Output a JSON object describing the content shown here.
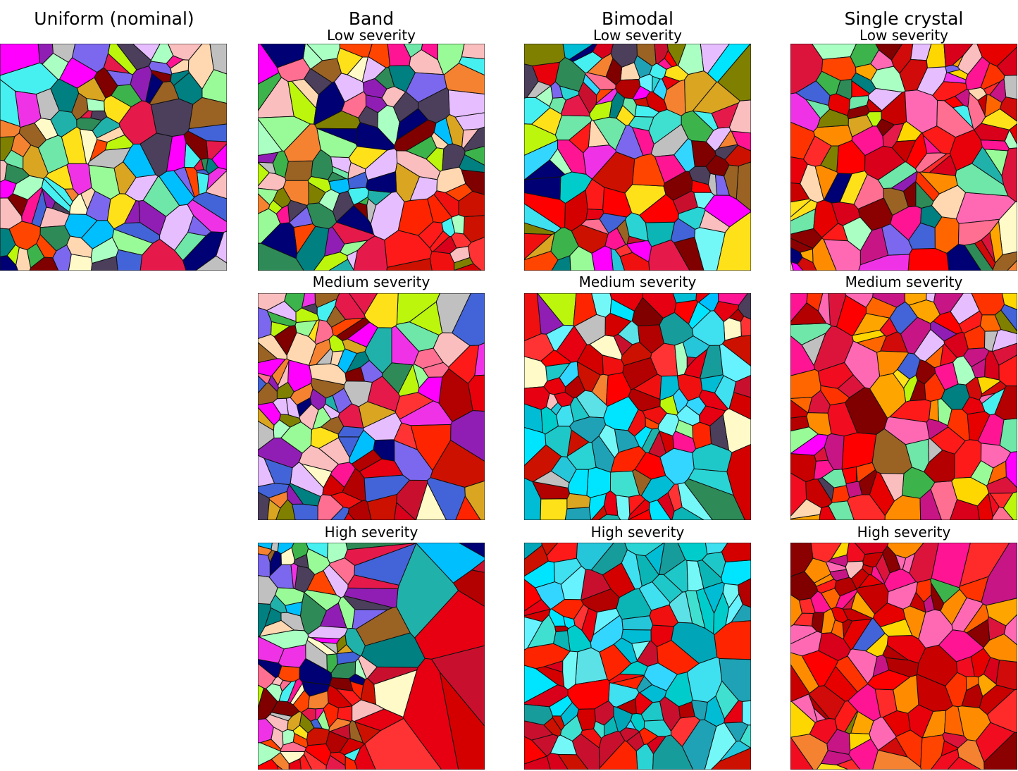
{
  "columns": [
    {
      "title": "Uniform (nominal)",
      "rows": [
        ""
      ]
    },
    {
      "title": "Band",
      "rows": [
        "Low severity",
        "Medium severity",
        "High severity"
      ]
    },
    {
      "title": "Bimodal",
      "rows": [
        "Low severity",
        "Medium severity",
        "High severity"
      ]
    },
    {
      "title": "Single crystal",
      "rows": [
        "Low severity",
        "Medium severity",
        "High severity"
      ]
    }
  ],
  "palettes": {
    "multicolor": [
      "#e6194b",
      "#3cb44b",
      "#ffe119",
      "#4363d8",
      "#f58231",
      "#911eb4",
      "#46f0f0",
      "#f032e6",
      "#bcf60c",
      "#fabebe",
      "#008080",
      "#e6beff",
      "#9a6324",
      "#fffac8",
      "#800000",
      "#aaffc3",
      "#808000",
      "#ffd8b1",
      "#000075",
      "#4b3f5c",
      "#ff6f91",
      "#6ee7a8",
      "#c0c0c0",
      "#ff00ff",
      "#00bfff",
      "#2e8b57",
      "#ff4500",
      "#7b68ee",
      "#daa520",
      "#20b2aa",
      "#ff1493",
      "#98fb98"
    ],
    "cool": [
      "#00e5ff",
      "#33d6ff",
      "#00cccc",
      "#40e0d0",
      "#1ec8c8",
      "#66f2ff",
      "#0bb5b5",
      "#26c6da",
      "#5ce1e6",
      "#00bcd4",
      "#1fa2b5",
      "#3fe0f0",
      "#179c9c",
      "#74f7f7",
      "#00a6b8",
      "#2ad4d4"
    ],
    "warm": [
      "#ff0000",
      "#e60012",
      "#d40000",
      "#ff1a1a",
      "#c8102e",
      "#b30000",
      "#ff3333",
      "#e8000b",
      "#cc1100",
      "#ff2400",
      "#d9001b",
      "#f01010"
    ],
    "hot": [
      "#ff0000",
      "#e60000",
      "#d10a0a",
      "#ff1a1a",
      "#c80000",
      "#b40000",
      "#ff3300",
      "#e8000b",
      "#f10c20",
      "#ff2a2a",
      "#d8001a",
      "#ff6600",
      "#ff8c00",
      "#ffd700",
      "#ff1493",
      "#c71585",
      "#ff69b4",
      "#ffa500",
      "#dc143c",
      "#8b0000"
    ]
  }
}
